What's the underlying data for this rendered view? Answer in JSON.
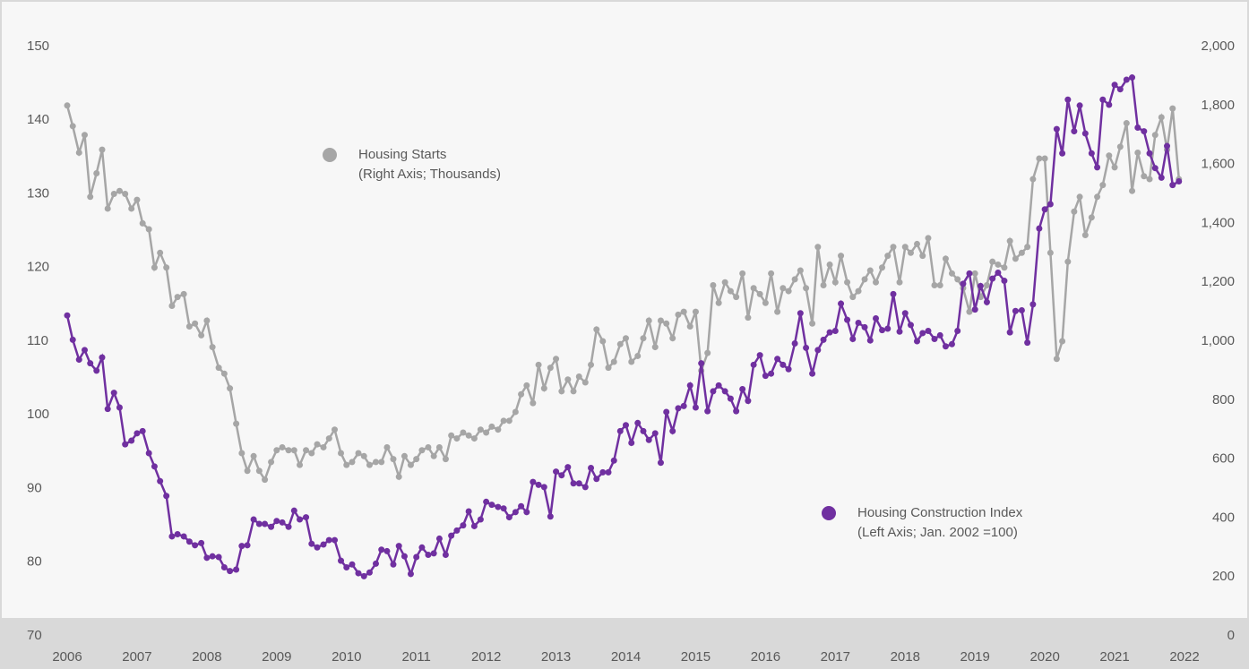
{
  "chart_data": {
    "type": "line",
    "x": [
      2006,
      2006.08,
      2006.17,
      2006.25,
      2006.33,
      2006.42,
      2006.5,
      2006.58,
      2006.67,
      2006.75,
      2006.83,
      2006.92,
      2007,
      2007.08,
      2007.17,
      2007.25,
      2007.33,
      2007.42,
      2007.5,
      2007.58,
      2007.67,
      2007.75,
      2007.83,
      2007.92,
      2008,
      2008.08,
      2008.17,
      2008.25,
      2008.33,
      2008.42,
      2008.5,
      2008.58,
      2008.67,
      2008.75,
      2008.83,
      2008.92,
      2009,
      2009.08,
      2009.17,
      2009.25,
      2009.33,
      2009.42,
      2009.5,
      2009.58,
      2009.67,
      2009.75,
      2009.83,
      2009.92,
      2010,
      2010.08,
      2010.17,
      2010.25,
      2010.33,
      2010.42,
      2010.5,
      2010.58,
      2010.67,
      2010.75,
      2010.83,
      2010.92,
      2011,
      2011.08,
      2011.17,
      2011.25,
      2011.33,
      2011.42,
      2011.5,
      2011.58,
      2011.67,
      2011.75,
      2011.83,
      2011.92,
      2012,
      2012.08,
      2012.17,
      2012.25,
      2012.33,
      2012.42,
      2012.5,
      2012.58,
      2012.67,
      2012.75,
      2012.83,
      2012.92,
      2013,
      2013.08,
      2013.17,
      2013.25,
      2013.33,
      2013.42,
      2013.5,
      2013.58,
      2013.67,
      2013.75,
      2013.83,
      2013.92,
      2014,
      2014.08,
      2014.17,
      2014.25,
      2014.33,
      2014.42,
      2014.5,
      2014.58,
      2014.67,
      2014.75,
      2014.83,
      2014.92,
      2015,
      2015.08,
      2015.17,
      2015.25,
      2015.33,
      2015.42,
      2015.5,
      2015.58,
      2015.67,
      2015.75,
      2015.83,
      2015.92,
      2016,
      2016.08,
      2016.17,
      2016.25,
      2016.33,
      2016.42,
      2016.5,
      2016.58,
      2016.67,
      2016.75,
      2016.83,
      2016.92,
      2017,
      2017.08,
      2017.17,
      2017.25,
      2017.33,
      2017.42,
      2017.5,
      2017.58,
      2017.67,
      2017.75,
      2017.83,
      2017.92,
      2018,
      2018.08,
      2018.17,
      2018.25,
      2018.33,
      2018.42,
      2018.5,
      2018.58,
      2018.67,
      2018.75,
      2018.83,
      2018.92,
      2019,
      2019.08,
      2019.17,
      2019.25,
      2019.33,
      2019.42,
      2019.5,
      2019.58,
      2019.67,
      2019.75,
      2019.83,
      2019.92,
      2020,
      2020.08,
      2020.17,
      2020.25,
      2020.33,
      2020.42,
      2020.5,
      2020.58,
      2020.67,
      2020.75,
      2020.83,
      2020.92,
      2021,
      2021.08,
      2021.17,
      2021.25,
      2021.33,
      2021.42,
      2021.5,
      2021.58,
      2021.67,
      2021.75,
      2021.83,
      2021.92
    ],
    "series": [
      {
        "name": "Housing Starts",
        "axis_note": "(Right Axis; Thousands)",
        "color": "#a6a6a6",
        "axis": "y2",
        "values": [
          1800,
          1730,
          1640,
          1700,
          1490,
          1570,
          1650,
          1450,
          1500,
          1510,
          1500,
          1450,
          1480,
          1400,
          1380,
          1250,
          1300,
          1250,
          1120,
          1150,
          1160,
          1050,
          1060,
          1020,
          1070,
          980,
          910,
          890,
          840,
          720,
          620,
          560,
          610,
          560,
          530,
          590,
          630,
          640,
          630,
          630,
          580,
          630,
          620,
          650,
          640,
          670,
          700,
          620,
          580,
          590,
          620,
          610,
          580,
          590,
          590,
          640,
          600,
          540,
          610,
          580,
          600,
          630,
          640,
          610,
          640,
          600,
          680,
          670,
          690,
          680,
          670,
          700,
          690,
          710,
          700,
          730,
          730,
          760,
          820,
          850,
          790,
          920,
          840,
          910,
          940,
          830,
          870,
          830,
          880,
          860,
          920,
          1040,
          1000,
          910,
          930,
          990,
          1010,
          930,
          950,
          1010,
          1070,
          980,
          1070,
          1060,
          1010,
          1090,
          1100,
          1050,
          1100,
          900,
          960,
          1190,
          1130,
          1200,
          1170,
          1150,
          1230,
          1080,
          1180,
          1160,
          1130,
          1230,
          1100,
          1180,
          1170,
          1210,
          1240,
          1180,
          1060,
          1320,
          1190,
          1260,
          1200,
          1290,
          1200,
          1150,
          1170,
          1210,
          1240,
          1200,
          1250,
          1290,
          1320,
          1200,
          1320,
          1300,
          1330,
          1290,
          1350,
          1190,
          1190,
          1280,
          1230,
          1210,
          1180,
          1100,
          1230,
          1150,
          1190,
          1270,
          1260,
          1250,
          1340,
          1280,
          1300,
          1320,
          1550,
          1620,
          1620,
          1300,
          940,
          1000,
          1270,
          1440,
          1490,
          1360,
          1420,
          1490,
          1530,
          1630,
          1590,
          1660,
          1740,
          1510,
          1640,
          1560,
          1550,
          1700,
          1760,
          1650,
          1790,
          1550
        ]
      },
      {
        "name": "Housing Construction Index",
        "axis_note": "(Left Axis; Jan. 2002 =100)",
        "color": "#7030a0",
        "axis": "y",
        "values": [
          113.5,
          110.2,
          107.5,
          108.8,
          107,
          106,
          107.8,
          100.8,
          103,
          101,
          96,
          96.5,
          97.5,
          97.8,
          94.8,
          93,
          91,
          89,
          83.5,
          83.8,
          83.5,
          82.8,
          82.3,
          82.6,
          80.6,
          80.8,
          80.7,
          79.3,
          78.8,
          79,
          82.2,
          82.3,
          85.8,
          85.2,
          85.2,
          84.8,
          85.6,
          85.4,
          84.8,
          87,
          85.8,
          86.1,
          82.5,
          82,
          82.4,
          83,
          83,
          80.2,
          79.3,
          79.7,
          78.5,
          78.1,
          78.6,
          79.8,
          81.7,
          81.5,
          79.7,
          82.2,
          80.8,
          78.4,
          80.7,
          82,
          81,
          81.2,
          83.2,
          81,
          83.6,
          84.3,
          85,
          86.9,
          84.9,
          85.8,
          88.2,
          87.8,
          87.5,
          87.3,
          86.1,
          86.8,
          87.6,
          86.8,
          90.9,
          90.5,
          90.2,
          86.2,
          92.3,
          91.8,
          92.9,
          90.7,
          90.7,
          90.2,
          92.8,
          91.3,
          92.2,
          92.2,
          93.8,
          97.8,
          98.6,
          96.2,
          98.9,
          97.8,
          96.6,
          97.5,
          93.5,
          100.4,
          97.8,
          100.9,
          101.2,
          104,
          101,
          107,
          100.5,
          103.2,
          104,
          103.2,
          102.2,
          100.5,
          103.5,
          101.9,
          106.8,
          108.1,
          105.3,
          105.6,
          107.6,
          106.8,
          106.2,
          109.7,
          113.8,
          109.1,
          105.6,
          108.8,
          110.2,
          111.2,
          111.4,
          115.1,
          112.9,
          110.3,
          112.5,
          111.9,
          110.1,
          113.1,
          111.5,
          111.7,
          116.4,
          111.3,
          113.8,
          112.2,
          110,
          111.1,
          111.4,
          110.3,
          110.8,
          109.3,
          109.6,
          111.4,
          117.8,
          119.2,
          114.3,
          117.5,
          115.3,
          118.5,
          119.3,
          118.2,
          111.2,
          114.1,
          114.2,
          109.8,
          115,
          125.3,
          127.9,
          128.6,
          138.8,
          135.5,
          142.8,
          138.5,
          142,
          138.2,
          135.5,
          133.6,
          142.8,
          142.1,
          144.8,
          144.2,
          145.5,
          145.8,
          139,
          138.5,
          135.5,
          133.5,
          132.2,
          136.5,
          131.2,
          131.7
        ]
      }
    ],
    "xlim": [
      2006,
      2022
    ],
    "xticks": [
      2006,
      2007,
      2008,
      2009,
      2010,
      2011,
      2012,
      2013,
      2014,
      2015,
      2016,
      2017,
      2018,
      2019,
      2020,
      2021,
      2022
    ],
    "ylim": [
      70,
      150
    ],
    "yticks": [
      70,
      80,
      90,
      100,
      110,
      120,
      130,
      140,
      150
    ],
    "y2lim": [
      0,
      2000
    ],
    "y2ticks": [
      0,
      200,
      400,
      600,
      800,
      {
        "value": 1000,
        "label": "1,000"
      },
      {
        "value": 1200,
        "label": "1,200"
      },
      {
        "value": 1400,
        "label": "1,400"
      },
      {
        "value": 1600,
        "label": "1,600"
      },
      {
        "value": 1800,
        "label": "1,800"
      },
      {
        "value": 2000,
        "label": "2,000"
      }
    ]
  }
}
